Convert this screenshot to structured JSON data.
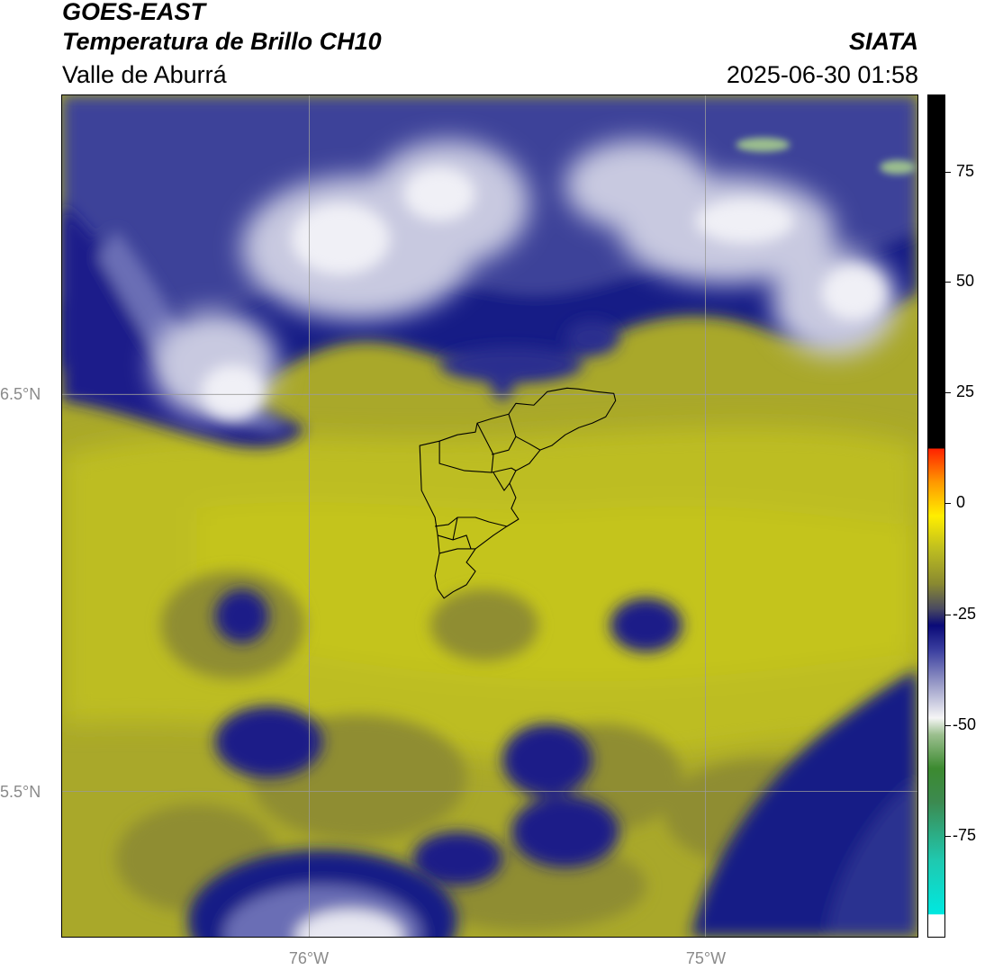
{
  "header": {
    "satellite": "GOES-EAST",
    "product": "Temperatura de Brillo CH10",
    "region": "Valle de Aburrá",
    "organization": "SIATA",
    "datetime": "2025-06-30 01:58"
  },
  "map": {
    "lat_labels": [
      "6.5°N",
      "5.5°N"
    ],
    "lon_labels": [
      "76°W",
      "75°W"
    ],
    "gridline_color": "#9a9a9a",
    "boundary_color": "#000000"
  },
  "colorbar": {
    "tick_labels": [
      "75",
      "50",
      "25",
      "0",
      "-25",
      "-50",
      "-75"
    ],
    "tick_values": [
      75,
      50,
      25,
      0,
      -25,
      -50,
      -75
    ],
    "range": [
      -95,
      92
    ],
    "colors": {
      "cyan": "#00e8e0",
      "green": "#3c8a30",
      "white": "#f5f5f5",
      "navy": "#0a0a78",
      "olive": "#bdbd20",
      "yellow": "#ffee00",
      "orange": "#ff8800",
      "red": "#ff2200",
      "black": "#000000"
    }
  }
}
